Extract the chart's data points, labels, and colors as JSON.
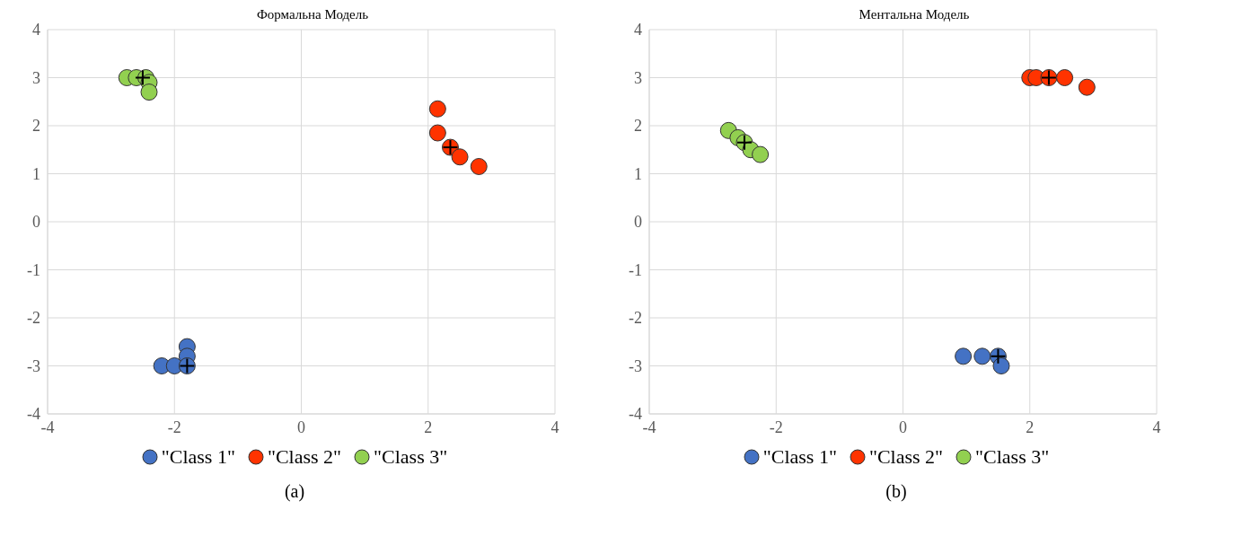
{
  "chart_data": [
    {
      "type": "scatter",
      "title": "Формальна Модель",
      "annotations": [
        "(a)"
      ],
      "xlim": [
        -4,
        4
      ],
      "ylim": [
        -4,
        4
      ],
      "xticks": [
        -4,
        -2,
        0,
        2,
        4
      ],
      "yticks": [
        -4,
        -3,
        -2,
        -1,
        0,
        1,
        2,
        3,
        4
      ],
      "grid": true,
      "legend": "bottom",
      "marker": "circle",
      "series": [
        {
          "name": "\"Class 1\"",
          "color": "#4472c4",
          "x": [
            -2.2,
            -2.0,
            -1.8,
            -1.8,
            -1.8
          ],
          "values": [
            -3,
            -3,
            -2.6,
            -2.8,
            -3
          ]
        },
        {
          "name": "\"Class 2\"",
          "color": "#ff3300",
          "x": [
            2.15,
            2.15,
            2.35,
            2.5,
            2.8
          ],
          "values": [
            2.35,
            1.85,
            1.55,
            1.35,
            1.15
          ]
        },
        {
          "name": "\"Class 3\"",
          "color": "#92d050",
          "x": [
            -2.75,
            -2.6,
            -2.45,
            -2.4,
            -2.4
          ],
          "values": [
            3,
            3,
            3,
            2.9,
            2.7
          ]
        },
        {
          "color": "#000000",
          "marker": "cross",
          "x": [
            -1.8,
            2.35,
            -2.5
          ],
          "values": [
            -3,
            1.55,
            3
          ]
        }
      ]
    },
    {
      "type": "scatter",
      "title": "Ментальна Модель",
      "annotations": [
        "(b)"
      ],
      "xlim": [
        -4,
        4
      ],
      "ylim": [
        -4,
        4
      ],
      "xticks": [
        -4,
        -2,
        0,
        2,
        4
      ],
      "yticks": [
        -4,
        -3,
        -2,
        -1,
        0,
        1,
        2,
        3,
        4
      ],
      "grid": true,
      "legend": "bottom",
      "marker": "circle",
      "series": [
        {
          "name": "\"Class 1\"",
          "color": "#4472c4",
          "x": [
            0.95,
            1.25,
            1.5,
            1.55
          ],
          "values": [
            -2.8,
            -2.8,
            -2.8,
            -3
          ]
        },
        {
          "name": "\"Class 2\"",
          "color": "#ff3300",
          "x": [
            2.0,
            2.1,
            2.3,
            2.55,
            2.9
          ],
          "values": [
            3,
            3,
            3,
            3,
            2.8
          ]
        },
        {
          "name": "\"Class 3\"",
          "color": "#92d050",
          "x": [
            -2.75,
            -2.6,
            -2.5,
            -2.4,
            -2.25
          ],
          "values": [
            1.9,
            1.75,
            1.65,
            1.5,
            1.4
          ]
        },
        {
          "color": "#000000",
          "marker": "cross",
          "x": [
            1.5,
            2.3,
            -2.5
          ],
          "values": [
            -2.8,
            3,
            1.65
          ]
        }
      ]
    }
  ]
}
